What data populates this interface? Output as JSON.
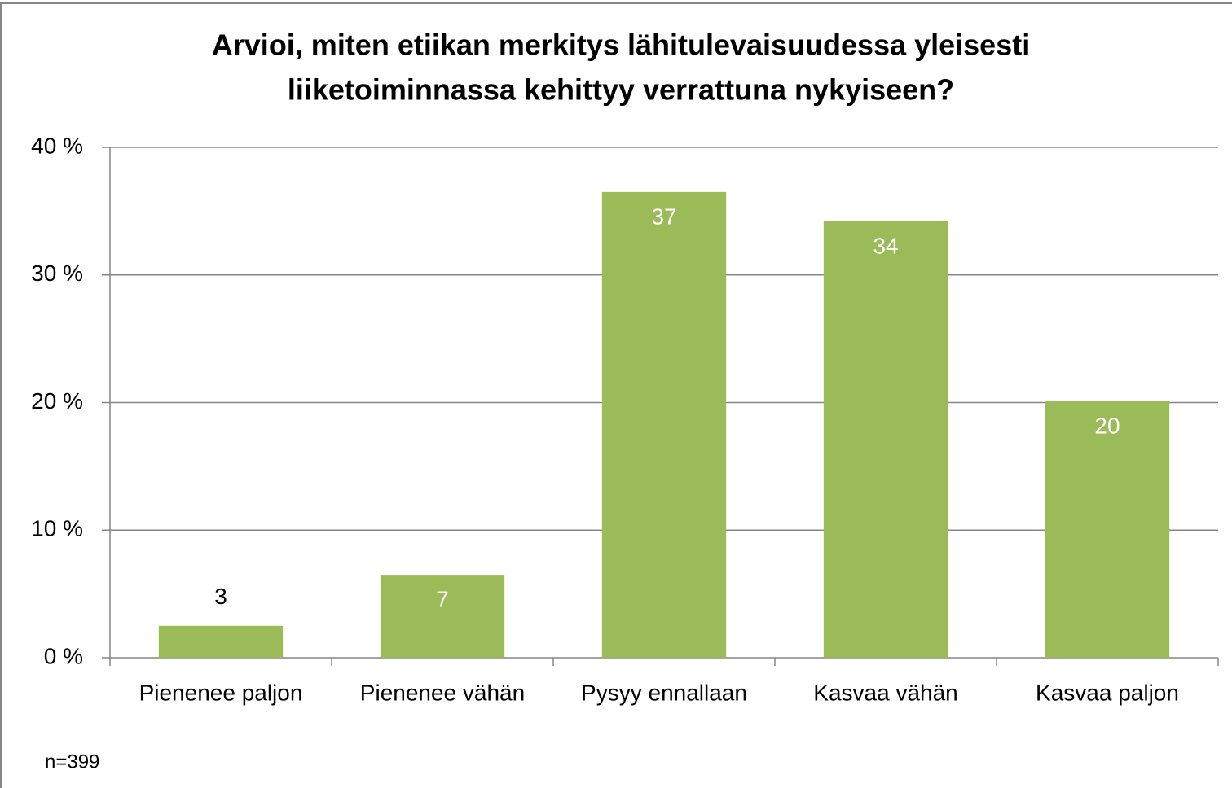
{
  "chart_data": {
    "type": "bar",
    "title": [
      "Arvioi, miten etiikan merkitys lähitulevaisuudessa yleisesti",
      "liiketoiminnassa kehittyy verrattuna nykyiseen?"
    ],
    "categories": [
      "Pienenee paljon",
      "Pienenee vähän",
      "Pysyy ennallaan",
      "Kasvaa vähän",
      "Kasvaa paljon"
    ],
    "values": [
      2.5,
      6.5,
      36.5,
      34.2,
      20.1
    ],
    "value_labels": [
      "3",
      "7",
      "37",
      "34",
      "20"
    ],
    "color": "#9bbb59",
    "ylim": [
      0,
      40
    ],
    "yticks": [
      {
        "value": 0,
        "label": "0 %"
      },
      {
        "value": 10,
        "label": "10 %"
      },
      {
        "value": 20,
        "label": "20 %"
      },
      {
        "value": 30,
        "label": "30 %"
      },
      {
        "value": 40,
        "label": "40 %"
      }
    ],
    "grid": true,
    "annotation": "n=399"
  }
}
